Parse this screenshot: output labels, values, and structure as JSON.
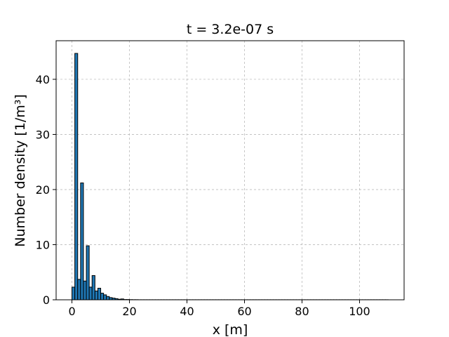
{
  "chart_data": {
    "type": "bar",
    "title": "t = 3.2e-07 s",
    "xlabel": "x [m]",
    "ylabel": "Number density [1/m³]",
    "xlim": [
      -5.5,
      115.5
    ],
    "ylim": [
      0,
      47
    ],
    "xticks": [
      0,
      20,
      40,
      60,
      80,
      100
    ],
    "yticks": [
      0,
      10,
      20,
      30,
      40
    ],
    "grid": true,
    "bin_width": 1.0,
    "bins": {
      "left_edges": [
        0,
        1,
        2,
        3,
        4,
        5,
        6,
        7,
        8,
        9,
        10,
        11,
        12,
        13,
        14,
        15,
        16,
        17,
        18,
        19,
        20,
        21,
        22,
        23,
        24,
        25,
        26,
        27,
        28,
        29,
        30,
        31,
        32,
        33,
        34,
        35,
        36,
        37,
        38,
        39,
        40,
        41,
        42,
        43,
        44,
        45,
        46,
        47,
        48,
        49,
        50,
        51,
        52,
        53,
        54,
        55,
        56,
        57,
        58,
        59,
        60,
        61,
        62,
        63,
        64,
        65,
        66,
        67,
        68,
        69,
        70,
        71,
        72,
        73,
        74,
        75,
        76,
        77,
        78,
        79,
        80,
        81,
        82,
        83,
        84,
        85,
        86,
        87,
        88,
        89,
        90,
        91,
        92,
        93,
        94,
        95,
        96,
        97,
        98,
        99,
        100,
        101,
        102,
        103,
        104,
        105,
        106,
        107,
        108,
        109
      ],
      "values": [
        2.3,
        44.7,
        3.7,
        21.2,
        3.4,
        9.8,
        2.3,
        4.4,
        1.6,
        2.1,
        1.2,
        0.9,
        0.6,
        0.4,
        0.3,
        0.2,
        0.1,
        0.15,
        0.05,
        0.05,
        0.03,
        0.02,
        0.02,
        0.01,
        0.01,
        0.01,
        0.01,
        0.01,
        0.01,
        0.01,
        0.01,
        0.01,
        0.01,
        0.01,
        0.01,
        0.01,
        0.01,
        0.01,
        0.01,
        0.01,
        0.01,
        0.01,
        0.01,
        0.01,
        0.01,
        0.01,
        0.01,
        0.01,
        0.01,
        0.01,
        0.01,
        0.01,
        0.01,
        0.01,
        0.01,
        0.01,
        0.01,
        0.01,
        0.01,
        0.01,
        0.01,
        0.01,
        0.01,
        0.01,
        0.01,
        0.01,
        0.01,
        0.01,
        0.01,
        0.01,
        0.01,
        0.01,
        0.01,
        0.01,
        0.01,
        0.01,
        0.01,
        0.01,
        0.01,
        0.01,
        0.01,
        0.01,
        0.01,
        0.01,
        0.01,
        0.01,
        0.01,
        0.01,
        0.01,
        0.01,
        0.01,
        0.01,
        0.01,
        0.01,
        0.01,
        0.01,
        0.01,
        0.01,
        0.01,
        0.01,
        0.01,
        0.01,
        0.01,
        0.01,
        0.01,
        0.01,
        0.01,
        0.01,
        0.01,
        0.01
      ]
    },
    "colors": {
      "bar_fill": "#1f77b4",
      "bar_edge": "#000000",
      "grid": "#b0b0b0"
    }
  }
}
